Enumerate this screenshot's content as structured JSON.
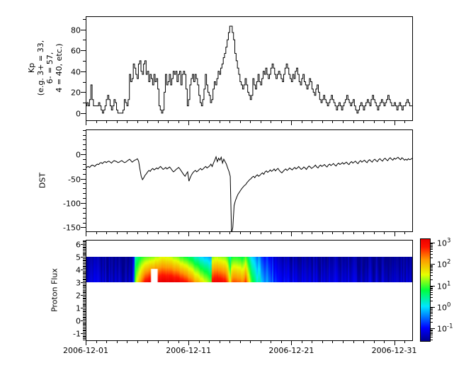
{
  "figure": {
    "background": "#ffffff",
    "line_color": "#000000",
    "tick_font_size": 11
  },
  "x_axis": {
    "tick_labels": [
      "2006-12-01",
      "2006-12-11",
      "2006-12-21",
      "2006-12-31"
    ],
    "major_tick_days": [
      0,
      10,
      20,
      30
    ],
    "minor_tick_step_days": 1,
    "range_days": [
      0,
      31.75
    ]
  },
  "chart_data": [
    {
      "id": "kp",
      "type": "line",
      "style": "step",
      "ylabel": "Kp\n(e.g. 3+ = 33,\n6- = 57,\n4 = 40, etc.)",
      "ylim": [
        -6.8,
        92.5
      ],
      "yticks": [
        0,
        20,
        40,
        60,
        80
      ],
      "y_minor_step": 10,
      "sample_hours": 3,
      "values": [
        7,
        10,
        7,
        13,
        27,
        13,
        7,
        7,
        7,
        7,
        10,
        7,
        3,
        0,
        3,
        7,
        13,
        17,
        13,
        7,
        3,
        7,
        13,
        10,
        3,
        0,
        0,
        0,
        0,
        3,
        13,
        10,
        7,
        13,
        37,
        30,
        33,
        47,
        43,
        37,
        33,
        47,
        50,
        40,
        37,
        47,
        50,
        37,
        40,
        30,
        37,
        33,
        27,
        37,
        30,
        33,
        23,
        7,
        3,
        0,
        3,
        20,
        37,
        27,
        30,
        37,
        27,
        33,
        40,
        37,
        40,
        30,
        37,
        40,
        27,
        37,
        40,
        37,
        23,
        7,
        13,
        27,
        33,
        37,
        30,
        37,
        33,
        27,
        17,
        10,
        7,
        13,
        23,
        37,
        27,
        20,
        17,
        10,
        13,
        23,
        30,
        27,
        33,
        40,
        37,
        43,
        47,
        53,
        57,
        63,
        70,
        77,
        83,
        83,
        77,
        70,
        57,
        50,
        43,
        37,
        30,
        27,
        23,
        27,
        33,
        27,
        20,
        17,
        13,
        17,
        33,
        27,
        23,
        30,
        37,
        30,
        27,
        33,
        40,
        37,
        43,
        37,
        33,
        37,
        43,
        47,
        43,
        37,
        33,
        37,
        40,
        37,
        33,
        30,
        37,
        43,
        47,
        43,
        37,
        33,
        30,
        37,
        33,
        40,
        43,
        37,
        30,
        27,
        33,
        37,
        30,
        27,
        23,
        27,
        33,
        30,
        23,
        20,
        17,
        23,
        27,
        20,
        13,
        10,
        13,
        17,
        13,
        10,
        7,
        10,
        13,
        17,
        13,
        10,
        7,
        3,
        7,
        10,
        7,
        3,
        7,
        10,
        13,
        17,
        13,
        10,
        7,
        10,
        13,
        7,
        3,
        0,
        3,
        7,
        10,
        7,
        3,
        7,
        10,
        13,
        10,
        7,
        13,
        17,
        13,
        10,
        7,
        3,
        7,
        10,
        13,
        10,
        7,
        10,
        13,
        17,
        13,
        10,
        7,
        7,
        10,
        7,
        3,
        7,
        10,
        7,
        3,
        7,
        7,
        10,
        13,
        10,
        7,
        7
      ]
    },
    {
      "id": "dst",
      "type": "line",
      "style": "line",
      "ylabel": "DST",
      "ylim": [
        -158,
        51
      ],
      "yticks": [
        0,
        -50,
        -100,
        -150
      ],
      "y_minor_step": 10,
      "sample_hours": 3,
      "values": [
        -28,
        -26,
        -25,
        -27,
        -24,
        -22,
        -23,
        -25,
        -22,
        -20,
        -21,
        -18,
        -17,
        -19,
        -16,
        -15,
        -17,
        -15,
        -14,
        -16,
        -18,
        -15,
        -13,
        -14,
        -15,
        -17,
        -16,
        -14,
        -13,
        -15,
        -17,
        -16,
        -14,
        -12,
        -10,
        -13,
        -16,
        -14,
        -12,
        -11,
        -9,
        -14,
        -30,
        -45,
        -52,
        -48,
        -43,
        -40,
        -36,
        -33,
        -35,
        -31,
        -29,
        -32,
        -30,
        -28,
        -30,
        -27,
        -25,
        -28,
        -31,
        -29,
        -27,
        -30,
        -28,
        -26,
        -29,
        -33,
        -36,
        -34,
        -31,
        -29,
        -27,
        -30,
        -34,
        -38,
        -42,
        -45,
        -40,
        -36,
        -55,
        -48,
        -42,
        -38,
        -35,
        -33,
        -36,
        -34,
        -31,
        -29,
        -32,
        -30,
        -27,
        -25,
        -28,
        -26,
        -24,
        -20,
        -25,
        -18,
        -12,
        -5,
        -15,
        -8,
        -12,
        -6,
        -18,
        -10,
        -15,
        -20,
        -28,
        -35,
        -45,
        -162,
        -150,
        -105,
        -95,
        -88,
        -82,
        -78,
        -74,
        -70,
        -67,
        -64,
        -62,
        -58,
        -55,
        -52,
        -50,
        -47,
        -45,
        -48,
        -44,
        -42,
        -45,
        -43,
        -40,
        -38,
        -41,
        -36,
        -34,
        -37,
        -35,
        -32,
        -35,
        -33,
        -30,
        -34,
        -31,
        -29,
        -33,
        -36,
        -38,
        -35,
        -32,
        -30,
        -33,
        -31,
        -28,
        -30,
        -32,
        -29,
        -27,
        -30,
        -28,
        -25,
        -28,
        -31,
        -29,
        -26,
        -28,
        -31,
        -27,
        -24,
        -26,
        -29,
        -27,
        -25,
        -22,
        -26,
        -28,
        -24,
        -22,
        -25,
        -23,
        -21,
        -24,
        -26,
        -22,
        -20,
        -23,
        -21,
        -19,
        -22,
        -24,
        -20,
        -18,
        -21,
        -19,
        -17,
        -20,
        -18,
        -16,
        -19,
        -21,
        -17,
        -15,
        -18,
        -16,
        -14,
        -17,
        -19,
        -15,
        -13,
        -16,
        -14,
        -12,
        -15,
        -17,
        -13,
        -11,
        -14,
        -16,
        -12,
        -10,
        -13,
        -15,
        -11,
        -9,
        -12,
        -14,
        -10,
        -8,
        -11,
        -13,
        -9,
        -7,
        -10,
        -12,
        -8,
        -10,
        -8,
        -6,
        -9,
        -11,
        -7,
        -9,
        -12,
        -10,
        -12,
        -9,
        -11,
        -10,
        -8
      ]
    },
    {
      "id": "proton",
      "type": "heatmap",
      "ylabel": "Proton Flux",
      "ylim": [
        -1.56,
        6.33
      ],
      "yticks": [
        6,
        5,
        4,
        3,
        2,
        1,
        0,
        -1
      ],
      "y_minor_step": 0.1,
      "band_y_range": [
        3,
        5
      ],
      "log10_color_range": [
        -1.6,
        3.2
      ],
      "flux_bottom_keypoints": [
        [
          0,
          -1.25
        ],
        [
          4.65,
          -1.25
        ],
        [
          4.74,
          0.8
        ],
        [
          4.95,
          1.5
        ],
        [
          5.2,
          2.0
        ],
        [
          5.5,
          2.5
        ],
        [
          5.85,
          3.0
        ],
        [
          6.25,
          3.2
        ],
        [
          7.4,
          3.3
        ],
        [
          8.5,
          3.25
        ],
        [
          9.3,
          3.1
        ],
        [
          9.8,
          2.8
        ],
        [
          10.4,
          2.4
        ],
        [
          10.9,
          2.0
        ],
        [
          11.5,
          1.6
        ],
        [
          11.9,
          1.3
        ],
        [
          12.2,
          1.1
        ],
        [
          12.28,
          3.0
        ],
        [
          12.7,
          3.2
        ],
        [
          13.5,
          3.0
        ],
        [
          13.8,
          2.6
        ],
        [
          14.05,
          1.6
        ],
        [
          14.25,
          2.6
        ],
        [
          14.9,
          2.5
        ],
        [
          15.3,
          2.3
        ],
        [
          15.55,
          2.8
        ],
        [
          15.8,
          2.0
        ],
        [
          16.1,
          1.0
        ],
        [
          16.5,
          0.5
        ],
        [
          17.0,
          0.1
        ],
        [
          17.5,
          -0.25
        ],
        [
          18.0,
          -0.5
        ],
        [
          18.5,
          -0.75
        ],
        [
          19.0,
          -0.9
        ],
        [
          20.0,
          -1.0
        ],
        [
          21.0,
          -1.1
        ],
        [
          23.0,
          -1.2
        ],
        [
          31.75,
          -1.3
        ]
      ],
      "flux_top_keypoints": [
        [
          0,
          -1.55
        ],
        [
          4.65,
          -1.55
        ],
        [
          4.74,
          0.2
        ],
        [
          5.1,
          0.6
        ],
        [
          5.5,
          0.9
        ],
        [
          6.0,
          1.1
        ],
        [
          6.8,
          1.3
        ],
        [
          7.4,
          1.5
        ],
        [
          7.9,
          1.45
        ],
        [
          8.5,
          1.3
        ],
        [
          9.0,
          1.1
        ],
        [
          9.5,
          0.9
        ],
        [
          10.1,
          0.6
        ],
        [
          10.7,
          0.3
        ],
        [
          11.2,
          0.0
        ],
        [
          11.7,
          -0.2
        ],
        [
          12.2,
          -0.3
        ],
        [
          12.28,
          1.2
        ],
        [
          12.7,
          1.35
        ],
        [
          13.5,
          1.2
        ],
        [
          13.8,
          1.0
        ],
        [
          14.05,
          0.3
        ],
        [
          14.25,
          0.9
        ],
        [
          14.9,
          0.85
        ],
        [
          15.3,
          0.7
        ],
        [
          15.55,
          1.1
        ],
        [
          15.8,
          0.6
        ],
        [
          16.1,
          0.0
        ],
        [
          16.5,
          -0.3
        ],
        [
          17.0,
          -0.55
        ],
        [
          17.5,
          -0.8
        ],
        [
          18.0,
          -1.0
        ],
        [
          18.5,
          -1.2
        ],
        [
          19.0,
          -1.3
        ],
        [
          20.0,
          -1.4
        ],
        [
          21.0,
          -1.45
        ],
        [
          23.0,
          -1.55
        ],
        [
          31.75,
          -1.6
        ]
      ],
      "data_gap": {
        "t_days": [
          6.35,
          7.0
        ],
        "y_range": [
          3,
          4.05
        ]
      }
    }
  ],
  "colorbar": {
    "scale": "log",
    "tick_exponents": [
      3,
      2,
      1,
      0,
      -1
    ],
    "value_range_log10": [
      -1.6,
      3.2
    ],
    "colormap_stops": [
      [
        0,
        "#00008c"
      ],
      [
        0.13,
        "#0000ff"
      ],
      [
        0.34,
        "#00e6ff"
      ],
      [
        0.5,
        "#00ff3c"
      ],
      [
        0.65,
        "#e6ff00"
      ],
      [
        0.8,
        "#ff9600"
      ],
      [
        0.92,
        "#ff1400"
      ],
      [
        1,
        "#eb0000"
      ]
    ]
  }
}
